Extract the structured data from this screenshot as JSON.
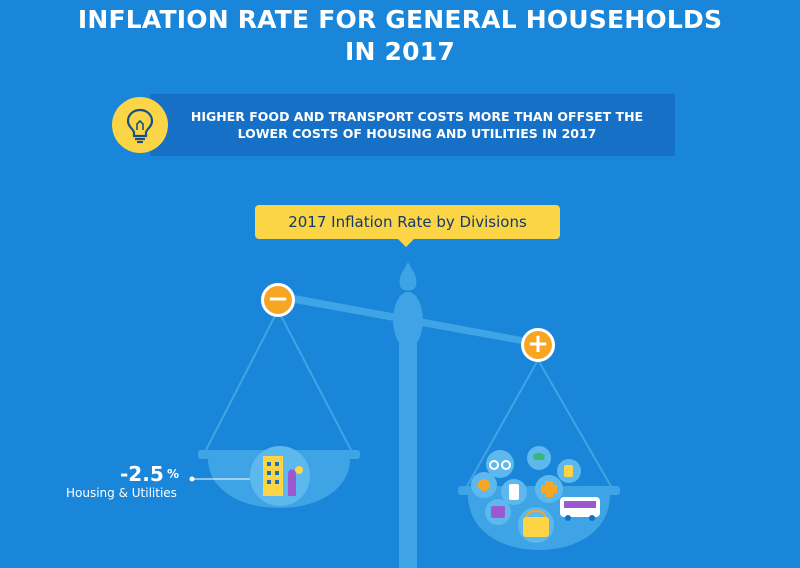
{
  "header": {
    "title_line1": "INFLATION RATE FOR GENERAL HOUSEHOLDS",
    "title_line2": "IN 2017"
  },
  "callout": {
    "icon": "lightbulb-icon",
    "text": "HIGHER FOOD AND TRANSPORT COSTS MORE THAN OFFSET THE LOWER COSTS OF HOUSING AND UTILITIES IN 2017"
  },
  "section": {
    "label": "2017 Inflation Rate by Divisions"
  },
  "scale": {
    "minus_symbol": "−",
    "plus_symbol": "+",
    "left_pan": {
      "value": "-2.5",
      "unit": "%",
      "label": "Housing & Utilities",
      "icon": "building-icon"
    },
    "right_pan": {
      "icons": [
        "glasses-icon",
        "shirt-icon",
        "medicine-icon",
        "money-icon",
        "health-cross-icon",
        "bus-icon",
        "phone-icon",
        "food-basket-icon"
      ]
    }
  },
  "colors": {
    "background": "#1a86d9",
    "accent_yellow": "#fbd545",
    "accent_orange": "#f6a623",
    "scale_light": "#3fa4e6"
  }
}
